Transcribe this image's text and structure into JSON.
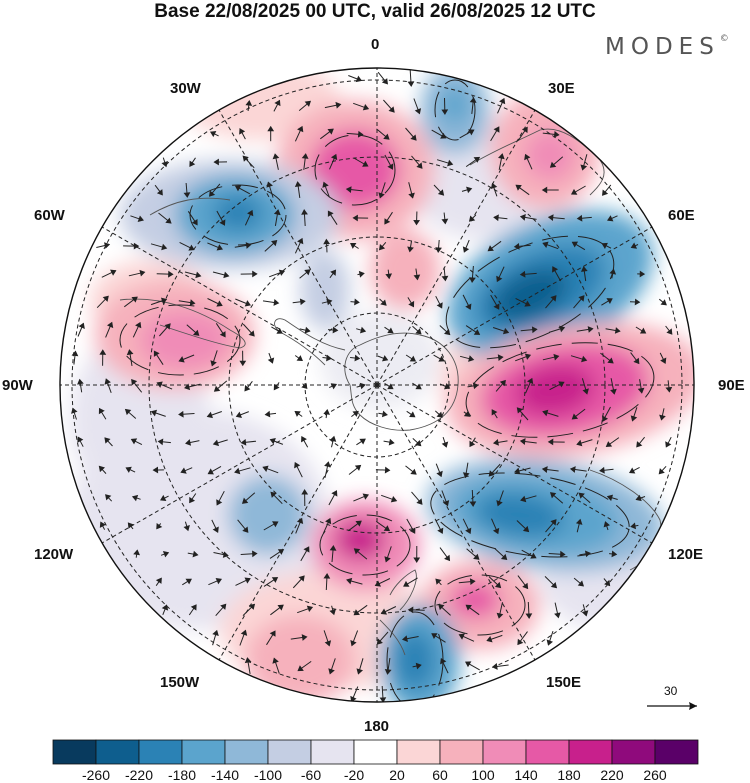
{
  "title": "Base 22/08/2025 00 UTC, valid 26/08/2025 12 UTC",
  "logo": {
    "text": "MODES",
    "mark": "©"
  },
  "longitude_labels": {
    "deg0": "0",
    "deg30e": "30E",
    "deg60e": "60E",
    "deg90e": "90E",
    "deg120e": "120E",
    "deg150e": "150E",
    "deg180": "180",
    "deg150w": "150W",
    "deg120w": "120W",
    "deg90w": "90W",
    "deg60w": "60W",
    "deg30w": "30W"
  },
  "reference_vector": {
    "label": "30"
  },
  "colorbar": {
    "colors": [
      "#083a5e",
      "#0e5e8e",
      "#2b82b5",
      "#5ba4cd",
      "#8fb8d8",
      "#c4cee3",
      "#e6e4f0",
      "#ffffff",
      "#fbd6d6",
      "#f6b1bc",
      "#f08cb7",
      "#e659a6",
      "#c8208c",
      "#8f0a7c",
      "#5a0068"
    ],
    "tick_labels": [
      "-260",
      "-220",
      "-180",
      "-140",
      "-100",
      "-60",
      "-20",
      "20",
      "60",
      "100",
      "140",
      "180",
      "220",
      "260"
    ]
  },
  "blobs": [
    {
      "name": "anomaly-positive-atlantic-north",
      "color": "#e659a6",
      "val": 180
    },
    {
      "name": "anomaly-negative-southatlantic",
      "color": "#2b82b5",
      "val": -180
    },
    {
      "name": "anomaly-negative-indian",
      "color": "#0e5e8e",
      "val": -220
    },
    {
      "name": "anomaly-positive-indian",
      "color": "#c8208c",
      "val": 220
    },
    {
      "name": "anomaly-negative-south-australia",
      "color": "#2b82b5",
      "val": -180
    },
    {
      "name": "anomaly-positive-bellingshausen",
      "color": "#e659a6",
      "val": 140
    },
    {
      "name": "anomaly-positive-ross",
      "color": "#c8208c",
      "val": 180
    },
    {
      "name": "anomaly-negative-newzealand",
      "color": "#2b82b5",
      "val": -180
    }
  ]
}
